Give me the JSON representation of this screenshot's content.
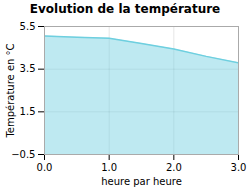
{
  "chart_data": {
    "type": "area",
    "title": "Evolution de la température",
    "xlabel": "heure par heure",
    "ylabel": "Température en °C",
    "x": [
      0,
      0.5,
      1.0,
      1.5,
      2.0,
      2.5,
      3.0
    ],
    "values": [
      5.05,
      5.0,
      4.95,
      4.7,
      4.45,
      4.1,
      3.8
    ],
    "color": "#6ecfdf",
    "xlim": [
      0,
      3
    ],
    "xticks": [
      0,
      1,
      2,
      3
    ],
    "ylim": [
      -0.5,
      5.5
    ],
    "yticks": [
      -0.5,
      1.5,
      3.5,
      5.5
    ],
    "grid": true
  }
}
